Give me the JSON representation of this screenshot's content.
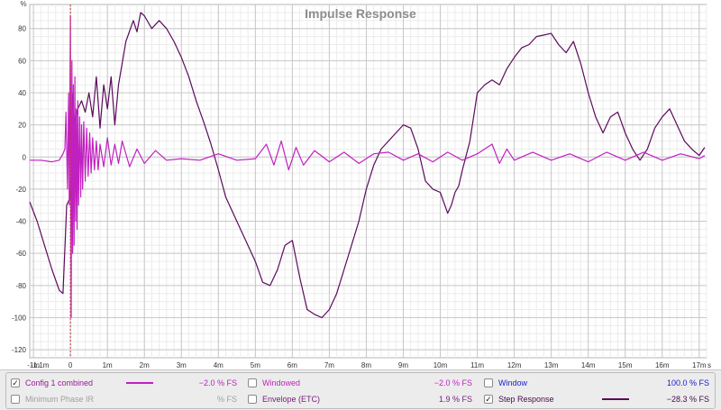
{
  "chart_data": {
    "type": "line",
    "title": "Impulse Response",
    "ylabel": "%",
    "xlabel": "",
    "ylim": [
      -125,
      95
    ],
    "xlim": [
      -1.1,
      17.2
    ],
    "yticks": [
      80,
      60,
      40,
      20,
      0,
      -20,
      -40,
      -60,
      -80,
      -100,
      -120
    ],
    "xticks": [
      {
        "v": -1.1,
        "label": "-1.1m"
      },
      {
        "v": -1,
        "label": "-1m"
      },
      {
        "v": 0,
        "label": "0"
      },
      {
        "v": 1,
        "label": "1m"
      },
      {
        "v": 2,
        "label": "2m"
      },
      {
        "v": 3,
        "label": "3m"
      },
      {
        "v": 4,
        "label": "4m"
      },
      {
        "v": 5,
        "label": "5m"
      },
      {
        "v": 6,
        "label": "6m"
      },
      {
        "v": 7,
        "label": "7m"
      },
      {
        "v": 8,
        "label": "8m"
      },
      {
        "v": 9,
        "label": "9m"
      },
      {
        "v": 10,
        "label": "10m"
      },
      {
        "v": 11,
        "label": "11m"
      },
      {
        "v": 12,
        "label": "12m"
      },
      {
        "v": 13,
        "label": "13m"
      },
      {
        "v": 14,
        "label": "14m"
      },
      {
        "v": 15,
        "label": "15m"
      },
      {
        "v": 16,
        "label": "16m"
      },
      {
        "v": 17,
        "label": "17m"
      },
      {
        "v": 17.2,
        "label": "s"
      }
    ],
    "marker_x": 0,
    "grid": true,
    "series": [
      {
        "name": "Step Response",
        "color": "#5c0a5c",
        "x": [
          -1.1,
          -0.9,
          -0.7,
          -0.5,
          -0.3,
          -0.2,
          -0.1,
          0.0,
          0.05,
          0.1,
          0.2,
          0.3,
          0.4,
          0.5,
          0.6,
          0.7,
          0.8,
          0.9,
          1.0,
          1.1,
          1.2,
          1.3,
          1.5,
          1.7,
          1.8,
          1.9,
          2.0,
          2.2,
          2.4,
          2.6,
          2.8,
          3.0,
          3.2,
          3.4,
          3.6,
          3.8,
          4.0,
          4.2,
          4.4,
          4.6,
          4.8,
          5.0,
          5.2,
          5.4,
          5.6,
          5.8,
          6.0,
          6.2,
          6.4,
          6.6,
          6.8,
          7.0,
          7.2,
          7.4,
          7.6,
          7.8,
          8.0,
          8.2,
          8.4,
          8.6,
          8.8,
          9.0,
          9.2,
          9.4,
          9.6,
          9.8,
          10.0,
          10.2,
          10.3,
          10.4,
          10.5,
          10.6,
          10.8,
          11.0,
          11.2,
          11.4,
          11.6,
          11.8,
          12.0,
          12.2,
          12.4,
          12.6,
          12.8,
          13.0,
          13.2,
          13.4,
          13.6,
          13.8,
          14.0,
          14.2,
          14.4,
          14.6,
          14.8,
          15.0,
          15.2,
          15.4,
          15.6,
          15.8,
          16.0,
          16.2,
          16.4,
          16.6,
          16.8,
          17.0,
          17.15
        ],
        "y": [
          -28,
          -40,
          -55,
          -70,
          -83,
          -85,
          -30,
          -25,
          40,
          20,
          30,
          35,
          28,
          40,
          25,
          50,
          18,
          45,
          30,
          50,
          20,
          45,
          72,
          85,
          78,
          90,
          88,
          80,
          85,
          80,
          72,
          62,
          50,
          35,
          22,
          8,
          -8,
          -25,
          -35,
          -45,
          -55,
          -65,
          -78,
          -80,
          -70,
          -55,
          -52,
          -75,
          -95,
          -98,
          -100,
          -95,
          -85,
          -70,
          -55,
          -40,
          -20,
          -5,
          5,
          10,
          15,
          20,
          18,
          5,
          -15,
          -20,
          -22,
          -35,
          -30,
          -22,
          -18,
          -8,
          10,
          40,
          45,
          48,
          45,
          55,
          62,
          68,
          70,
          75,
          76,
          77,
          70,
          65,
          72,
          58,
          40,
          25,
          15,
          25,
          28,
          15,
          5,
          -2,
          5,
          18,
          25,
          30,
          20,
          10,
          5,
          1,
          6
        ]
      },
      {
        "name": "Config 1 combined",
        "color": "#c020c0",
        "x": [
          -1.1,
          -0.8,
          -0.5,
          -0.3,
          -0.2,
          -0.15,
          -0.12,
          -0.08,
          -0.05,
          -0.03,
          0.0,
          0.02,
          0.04,
          0.06,
          0.08,
          0.1,
          0.12,
          0.14,
          0.16,
          0.18,
          0.2,
          0.22,
          0.25,
          0.28,
          0.3,
          0.33,
          0.36,
          0.4,
          0.44,
          0.48,
          0.52,
          0.56,
          0.6,
          0.65,
          0.7,
          0.75,
          0.8,
          0.9,
          1.0,
          1.1,
          1.2,
          1.3,
          1.4,
          1.6,
          1.8,
          2.0,
          2.3,
          2.6,
          3.0,
          3.5,
          4.0,
          4.5,
          5.0,
          5.3,
          5.5,
          5.7,
          5.9,
          6.1,
          6.3,
          6.6,
          7.0,
          7.4,
          7.8,
          8.2,
          8.6,
          9.0,
          9.4,
          9.8,
          10.2,
          10.6,
          11.0,
          11.4,
          11.6,
          11.8,
          12.0,
          12.5,
          13.0,
          13.5,
          14.0,
          14.5,
          15.0,
          15.5,
          16.0,
          16.5,
          17.0,
          17.15
        ],
        "y": [
          -2,
          -2,
          -3,
          -2,
          2,
          5,
          28,
          -20,
          40,
          -30,
          88,
          -100,
          60,
          -60,
          45,
          -55,
          50,
          -40,
          30,
          -45,
          35,
          -30,
          25,
          -25,
          20,
          -20,
          22,
          -15,
          18,
          -12,
          15,
          -10,
          12,
          -8,
          10,
          -8,
          8,
          -6,
          12,
          -5,
          8,
          -4,
          10,
          -6,
          5,
          -4,
          4,
          -2,
          -1,
          -2,
          2,
          -2,
          -1,
          8,
          -5,
          10,
          -8,
          6,
          -5,
          4,
          -3,
          3,
          -4,
          2,
          3,
          -2,
          2,
          -3,
          3,
          -2,
          2,
          8,
          -4,
          5,
          -2,
          3,
          -2,
          2,
          -3,
          3,
          -2,
          3,
          -2,
          2,
          -1,
          1
        ]
      }
    ]
  },
  "legend": {
    "rows": [
      [
        {
          "checked": true,
          "label": "Config 1 combined",
          "color": "#c020c0",
          "label_color": "#9a1a9a",
          "line": true,
          "value": "−2.0 % FS",
          "value_color": "#c020c0"
        },
        {
          "checked": false,
          "label": "Windowed",
          "color": "#d040d0",
          "label_color": "#c020c0",
          "line": false,
          "value": "−2.0 % FS",
          "value_color": "#c020c0"
        },
        {
          "checked": false,
          "label": "Window",
          "color": "#1a1ad0",
          "label_color": "#1a1ad0",
          "line": false,
          "value": "100.0 % FS",
          "value_color": "#1a1ad0"
        }
      ],
      [
        {
          "checked": false,
          "label": "Minimum Phase IR",
          "color": "#999999",
          "label_color": "#a0a0a0",
          "line": false,
          "value": "% FS",
          "value_color": "#a0a0a0"
        },
        {
          "checked": false,
          "label": "Envelope (ETC)",
          "color": "#8a1a8a",
          "label_color": "#7a1a7a",
          "line": false,
          "value": "1.9 % FS",
          "value_color": "#7a1a7a"
        },
        {
          "checked": true,
          "label": "Step Response",
          "color": "#5c0a5c",
          "label_color": "#4a0a4a",
          "line": true,
          "value": "−28.3 % FS",
          "value_color": "#4a0a4a"
        }
      ]
    ]
  }
}
